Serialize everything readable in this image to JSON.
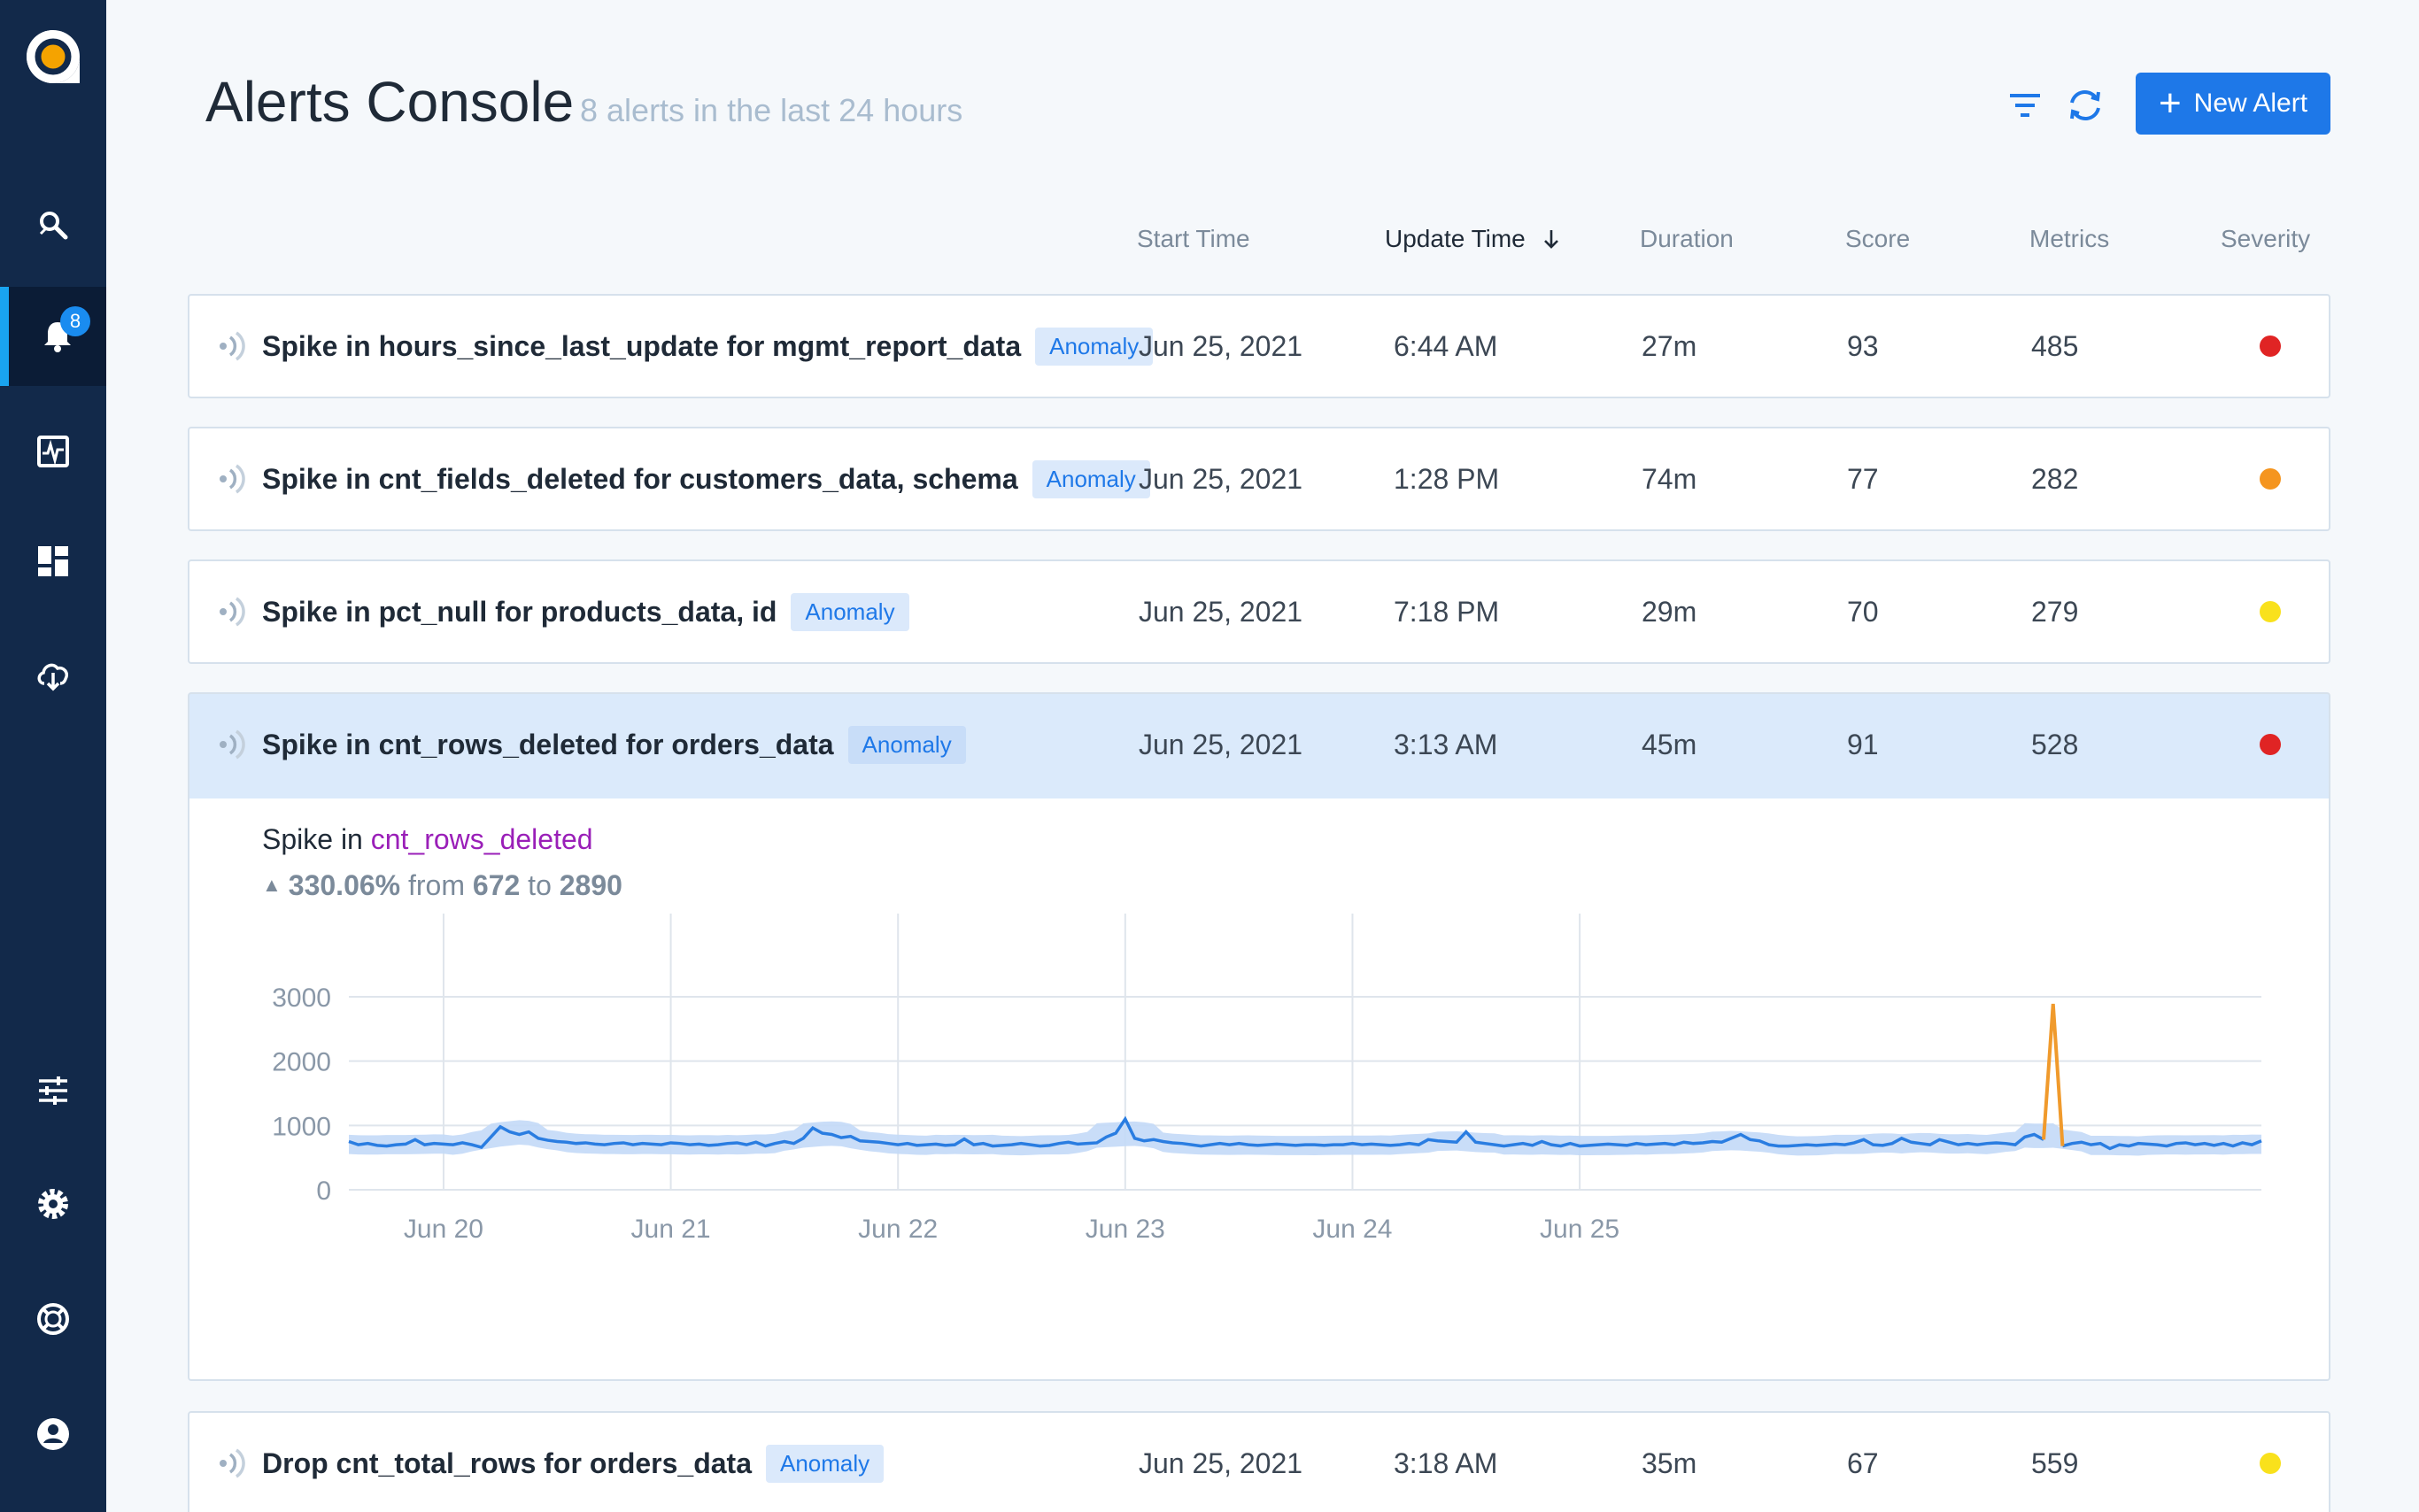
{
  "header": {
    "title": "Alerts Console",
    "subtitle": "8 alerts in the last 24 hours",
    "new_alert_label": "New Alert"
  },
  "sidebar": {
    "alert_badge": "8",
    "items": [
      "explore-icon",
      "alerts-icon",
      "monitor-icon",
      "dashboard-icon",
      "cloud-download-icon",
      "sliders-icon",
      "gear-icon",
      "help-icon",
      "user-icon"
    ]
  },
  "columns": {
    "start": "Start Time",
    "update": "Update Time",
    "duration": "Duration",
    "score": "Score",
    "metrics": "Metrics",
    "severity": "Severity"
  },
  "colors": {
    "high": "#e02424",
    "medium": "#f5951f",
    "low": "#f9e11c",
    "accent": "#1e78e8"
  },
  "alerts": [
    {
      "name": "Spike in hours_since_last_update for mgmt_report_data",
      "tag": "Anomaly",
      "start": "Jun 25, 2021",
      "update": "6:44 AM",
      "duration": "27m",
      "score": "93",
      "metrics": "485",
      "severity": "high"
    },
    {
      "name": "Spike in cnt_fields_deleted for customers_data, schema",
      "tag": "Anomaly",
      "start": "Jun 25, 2021",
      "update": "1:28 PM",
      "duration": "74m",
      "score": "77",
      "metrics": "282",
      "severity": "medium"
    },
    {
      "name": "Spike in pct_null for products_data, id",
      "tag": "Anomaly",
      "start": "Jun 25, 2021",
      "update": "7:18 PM",
      "duration": "29m",
      "score": "70",
      "metrics": "279",
      "severity": "low"
    },
    {
      "name": "Spike in cnt_rows_deleted for orders_data",
      "tag": "Anomaly",
      "start": "Jun 25, 2021",
      "update": "3:13 AM",
      "duration": "45m",
      "score": "91",
      "metrics": "528",
      "severity": "high"
    },
    {
      "name": "Drop cnt_total_rows for orders_data",
      "tag": "Anomaly",
      "start": "Jun 25, 2021",
      "update": "3:18 AM",
      "duration": "35m",
      "score": "67",
      "metrics": "559",
      "severity": "low"
    }
  ],
  "detail": {
    "prefix": "Spike in",
    "metric": "cnt_rows_deleted",
    "change": "330.06%",
    "from_label": "from",
    "from": "672",
    "to_label": "to",
    "to": "2890"
  },
  "chart_data": {
    "type": "line",
    "ylim": [
      0,
      3000
    ],
    "yticks": [
      0,
      1000,
      2000,
      3000
    ],
    "xticks": [
      "Jun 20",
      "Jun 21",
      "Jun 22",
      "Jun 23",
      "Jun 24",
      "Jun 25"
    ],
    "x_start": "Jun 19 14:00",
    "x_step_hours": 1,
    "series": [
      {
        "values": [
          750,
          700,
          720,
          690,
          680,
          700,
          710,
          780,
          700,
          720,
          710,
          700,
          730,
          700,
          660,
          820,
          980,
          900,
          860,
          900,
          800,
          770,
          750,
          740,
          720,
          730,
          710,
          700,
          720,
          730,
          700,
          720,
          710,
          700,
          730,
          720,
          700,
          710,
          690,
          700,
          720,
          730,
          700,
          740,
          680,
          720,
          750,
          720,
          800,
          960,
          880,
          860,
          810,
          830,
          760,
          750,
          740,
          720,
          700,
          720,
          690,
          700,
          710,
          690,
          700,
          790,
          700,
          720,
          680,
          690,
          700,
          720,
          700,
          680,
          690,
          720,
          740,
          710,
          720,
          730,
          820,
          880,
          1100,
          800,
          760,
          780,
          750,
          730,
          720,
          700,
          680,
          700,
          720,
          700,
          720,
          700,
          690,
          700,
          710,
          700,
          690,
          700,
          700,
          690,
          700,
          700,
          720,
          700,
          710,
          700,
          690,
          700,
          720,
          700,
          780,
          760,
          750,
          740,
          900,
          740,
          720,
          700,
          680,
          700,
          720,
          690,
          750,
          700,
          680,
          720,
          680,
          690,
          700,
          710,
          700,
          690,
          720,
          700,
          710,
          720,
          700,
          740,
          720,
          730,
          750,
          740,
          800,
          860,
          780,
          760,
          700,
          680,
          680,
          690,
          700,
          690,
          700,
          710,
          700,
          730,
          780,
          700,
          690,
          720,
          800,
          740,
          720,
          700,
          780,
          740,
          700,
          720,
          700,
          720,
          730,
          720,
          700,
          820,
          860,
          780,
          2890,
          680,
          720,
          740,
          700,
          720,
          640,
          700,
          680,
          720,
          710,
          700,
          680,
          720,
          730,
          700,
          720,
          690,
          720,
          680,
          730,
          700,
          760
        ]
      },
      {
        "name": "",
        "values": []
      }
    ]
  }
}
